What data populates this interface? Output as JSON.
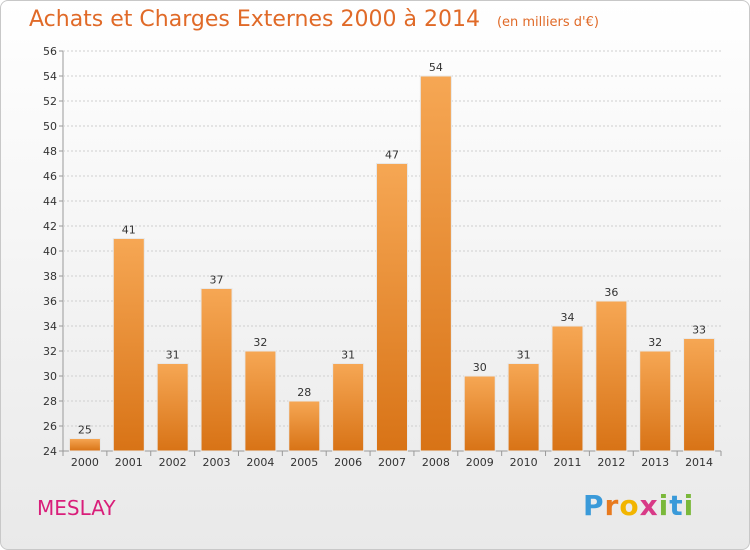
{
  "header": {
    "title": "Achats et Charges Externes 2000 à 2014",
    "unit": "(en milliers d'€)"
  },
  "footer": {
    "town": "MESLAY",
    "logo": "Proxiti"
  },
  "colors": {
    "bar_top": "#f6a754",
    "bar_bottom": "#d87316",
    "title": "#e06a28",
    "town": "#d91e7a"
  },
  "chart_data": {
    "type": "bar",
    "title": "Achats et Charges Externes 2000 à 2014",
    "subtitle": "(en milliers d'€)",
    "categories": [
      "2000",
      "2001",
      "2002",
      "2003",
      "2004",
      "2005",
      "2006",
      "2007",
      "2008",
      "2009",
      "2010",
      "2011",
      "2012",
      "2013",
      "2014"
    ],
    "values": [
      25,
      41,
      31,
      37,
      32,
      28,
      31,
      47,
      54,
      30,
      31,
      34,
      36,
      32,
      33
    ],
    "ylim": [
      24,
      56
    ],
    "yticks": [
      24,
      26,
      28,
      30,
      32,
      34,
      36,
      38,
      40,
      42,
      44,
      46,
      48,
      50,
      52,
      54,
      56
    ],
    "grid": true,
    "data_labels": true
  }
}
